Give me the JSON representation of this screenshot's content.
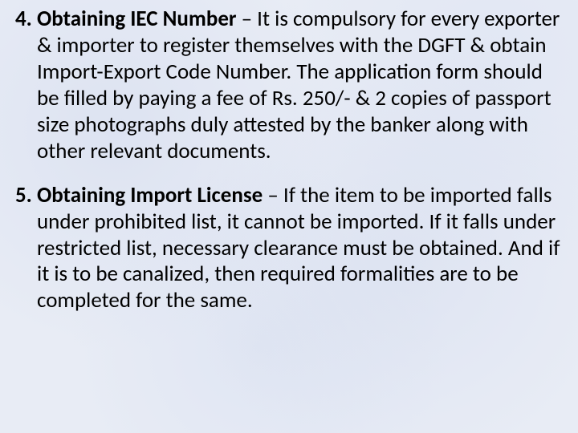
{
  "typography": {
    "font_family": "Calibri, Segoe UI, Arial, sans-serif",
    "font_size_pt": 20,
    "line_height": 1.22,
    "heading_weight": 700,
    "body_weight": 400,
    "text_color": "#000000"
  },
  "background": {
    "base_color": "#e8ecf5",
    "texture": "mottled-paper-blue"
  },
  "items": [
    {
      "number": "4.",
      "heading": "Obtaining IEC Number",
      "separator": " – ",
      "body": "It is compulsory for every exporter & importer to register themselves with the DGFT & obtain Import-Export Code Number. The application form should  be filled by paying a fee of Rs. 250/- & 2 copies of passport size photographs duly attested by the banker along with other relevant documents."
    },
    {
      "number": "5.",
      "heading": "Obtaining Import License",
      "separator": " – ",
      "body": "If the item to be imported falls under prohibited list, it cannot be imported. If it falls under restricted list, necessary clearance must be obtained. And if it is to be canalized, then required formalities are to be completed for the same."
    }
  ]
}
